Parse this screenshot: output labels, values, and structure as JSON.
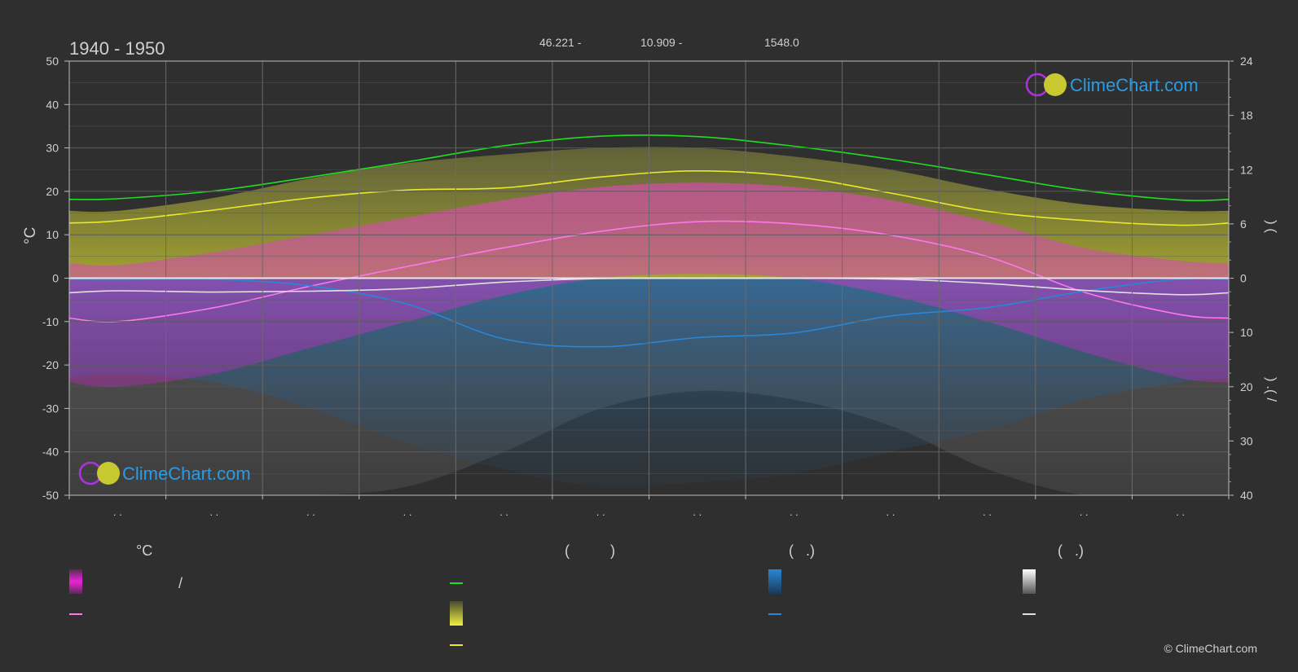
{
  "header": {
    "period": "1940 - 1950",
    "latitude": "46.221 -",
    "longitude": "10.909 -",
    "elevation": "1548.0"
  },
  "brand": {
    "name": "ClimeChart.com",
    "copyright": "© ClimeChart.com"
  },
  "colors": {
    "background": "#2f2f2f",
    "grid": "#5a5a5a",
    "daylight": "#22dd22",
    "sunshine": "#e8e830",
    "temp_avg": "#ff77ee",
    "temp_band": "#ee22dd",
    "rain": "#2a86d6",
    "snow": "#e0e0e0",
    "brand_text": "#2b9be3"
  },
  "chart_data": {
    "type": "line",
    "x": [
      "Jan",
      "Feb",
      "Mar",
      "Apr",
      "May",
      "Jun",
      "Jul",
      "Aug",
      "Sep",
      "Oct",
      "Nov",
      "Dec"
    ],
    "y_left": {
      "label": "°C",
      "ticks": [
        50,
        40,
        30,
        20,
        10,
        0,
        -10,
        -20,
        -30,
        -40,
        -50
      ],
      "ylim": [
        -50,
        50
      ]
    },
    "y_right_top": {
      "label": ")        (",
      "ticks": [
        24,
        18,
        12,
        6,
        0
      ],
      "ylim": [
        0,
        24
      ]
    },
    "y_right_bottom": {
      "label": ")   .(   /",
      "ticks": [
        0,
        10,
        20,
        30,
        40
      ],
      "ylim": [
        0,
        40
      ]
    },
    "x_tick_labels": ". .",
    "series": [
      {
        "role": "daylight",
        "values": [
          18.3,
          20.1,
          23.3,
          26.8,
          30.5,
          32.7,
          32.6,
          30.4,
          27.4,
          23.8,
          20.2,
          18.0
        ]
      },
      {
        "role": "sunshine",
        "values": [
          13.2,
          15.7,
          18.5,
          20.3,
          20.8,
          23.3,
          24.7,
          23.4,
          19.6,
          15.4,
          13.3,
          12.2
        ]
      },
      {
        "role": "temp_avg",
        "values": [
          -10.0,
          -6.8,
          -1.8,
          2.7,
          7.0,
          10.8,
          13.0,
          12.5,
          9.9,
          5.0,
          -3.2,
          -8.4
        ]
      },
      {
        "role": "rain",
        "values": [
          -0.4,
          -0.3,
          -1.8,
          -6.0,
          -14.0,
          -15.8,
          -13.7,
          -12.6,
          -8.7,
          -6.8,
          -3.0,
          -0.2
        ]
      },
      {
        "role": "snow",
        "values": [
          -2.9,
          -3.2,
          -3.0,
          -2.4,
          -0.9,
          -0.1,
          0.0,
          0.0,
          -0.2,
          -1.2,
          -2.8,
          -3.8
        ]
      }
    ],
    "sunshine_band": {
      "low": [
        0,
        0,
        0,
        0,
        0,
        0,
        0,
        0,
        0,
        0,
        0,
        0
      ],
      "high": [
        15.5,
        18.5,
        23.0,
        26.5,
        28.5,
        30.0,
        30.0,
        28.0,
        25.0,
        20.5,
        17.0,
        15.5
      ]
    },
    "temp_band": {
      "low": [
        -25,
        -22,
        -16,
        -10,
        -4,
        0,
        1,
        0,
        -4,
        -10,
        -17,
        -23
      ],
      "high": [
        3,
        6,
        10,
        14,
        18,
        21,
        22,
        21,
        18,
        13,
        7,
        4
      ]
    },
    "rain_depth": [
      -22,
      -24,
      -30,
      -38,
      -44,
      -48,
      -47,
      -45,
      -40,
      -35,
      -28,
      -24
    ],
    "snow_depth": [
      -50,
      -50,
      -50,
      -48,
      -40,
      -30,
      -26,
      -28,
      -34,
      -44,
      -50,
      -50
    ],
    "grid": true
  },
  "legend": {
    "temp_heading": "°C",
    "col2_heading": "(          )",
    "col3_heading": "(   .)",
    "col4_heading": "(   .)",
    "slash": "/"
  }
}
